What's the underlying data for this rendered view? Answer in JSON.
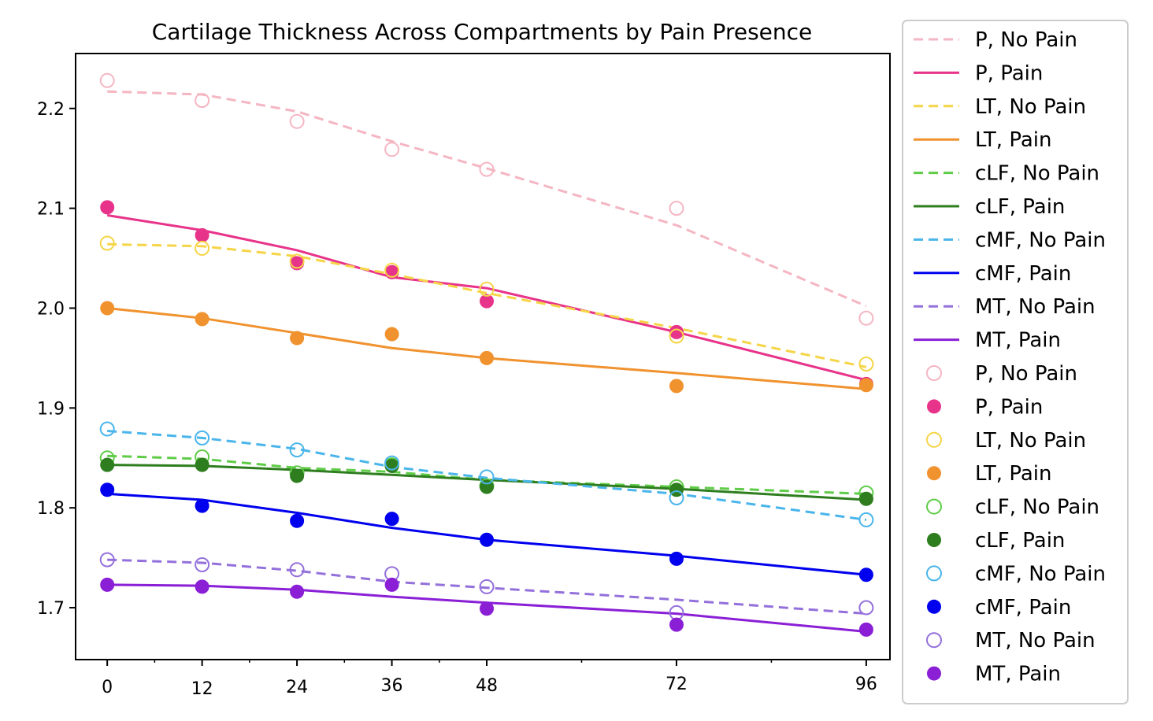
{
  "chart_data": {
    "type": "line",
    "title": "Cartilage Thickness Across Compartments by Pain Presence",
    "xlabel": "",
    "ylabel": "",
    "x": [
      0,
      12,
      24,
      36,
      48,
      72,
      96
    ],
    "x_tick_labels": [
      "0",
      "12",
      "24",
      "36",
      "48",
      "72",
      "96"
    ],
    "y_ticks": [
      1.7,
      1.8,
      1.9,
      2.0,
      2.1,
      2.2
    ],
    "y_tick_labels": [
      "1.7",
      "1.8",
      "1.9",
      "2.0",
      "2.1",
      "2.2"
    ],
    "ylim": [
      1.648,
      2.255
    ],
    "legend_position": "outside-right",
    "series": [
      {
        "name": "P, No Pain",
        "color": "#f4b6c2",
        "style": "dashed",
        "marker": "open",
        "values": [
          2.228,
          2.208,
          2.187,
          2.159,
          2.139,
          2.1,
          1.99
        ],
        "fit": [
          2.217,
          2.214,
          2.197,
          2.167,
          2.14,
          2.083,
          2.002
        ]
      },
      {
        "name": "P, Pain",
        "color": "#e8338a",
        "style": "solid",
        "marker": "filled",
        "values": [
          2.101,
          2.073,
          2.045,
          2.036,
          2.007,
          1.976,
          1.924
        ],
        "fit": [
          2.093,
          2.078,
          2.058,
          2.031,
          2.02,
          1.976,
          1.928
        ]
      },
      {
        "name": "LT, No Pain",
        "color": "#f5d547",
        "style": "dashed",
        "marker": "open",
        "values": [
          2.065,
          2.06,
          2.047,
          2.038,
          2.019,
          1.972,
          1.944
        ],
        "fit": [
          2.064,
          2.062,
          2.052,
          2.034,
          2.015,
          1.98,
          1.941
        ]
      },
      {
        "name": "LT, Pain",
        "color": "#f0922e",
        "style": "solid",
        "marker": "filled",
        "values": [
          2.0,
          1.989,
          1.97,
          1.974,
          1.95,
          1.922,
          1.923
        ],
        "fit": [
          2.0,
          1.99,
          1.975,
          1.96,
          1.95,
          1.935,
          1.919
        ]
      },
      {
        "name": "cLF, No Pain",
        "color": "#5fcc48",
        "style": "dashed",
        "marker": "open",
        "values": [
          1.85,
          1.851,
          1.835,
          1.843,
          1.822,
          1.821,
          1.815
        ],
        "fit": [
          1.852,
          1.849,
          1.84,
          1.836,
          1.828,
          1.821,
          1.814
        ]
      },
      {
        "name": "cLF, Pain",
        "color": "#2e7d1e",
        "style": "solid",
        "marker": "filled",
        "values": [
          1.843,
          1.843,
          1.832,
          1.842,
          1.821,
          1.818,
          1.809
        ],
        "fit": [
          1.843,
          1.842,
          1.838,
          1.833,
          1.828,
          1.819,
          1.808
        ]
      },
      {
        "name": "cMF, No Pain",
        "color": "#4ab5ea",
        "style": "dashed",
        "marker": "open",
        "values": [
          1.879,
          1.87,
          1.858,
          1.845,
          1.831,
          1.81,
          1.788
        ],
        "fit": [
          1.877,
          1.87,
          1.859,
          1.841,
          1.83,
          1.814,
          1.788
        ]
      },
      {
        "name": "cMF, Pain",
        "color": "#0000ee",
        "style": "solid",
        "marker": "filled",
        "values": [
          1.818,
          1.802,
          1.787,
          1.789,
          1.768,
          1.749,
          1.733
        ],
        "fit": [
          1.814,
          1.808,
          1.795,
          1.78,
          1.768,
          1.752,
          1.733
        ]
      },
      {
        "name": "MT, No Pain",
        "color": "#9370db",
        "style": "dashed",
        "marker": "open",
        "values": [
          1.748,
          1.743,
          1.738,
          1.734,
          1.721,
          1.695,
          1.7
        ],
        "fit": [
          1.748,
          1.745,
          1.737,
          1.726,
          1.72,
          1.708,
          1.694
        ]
      },
      {
        "name": "MT, Pain",
        "color": "#8a1fd6",
        "style": "solid",
        "marker": "filled",
        "values": [
          1.723,
          1.721,
          1.716,
          1.723,
          1.699,
          1.683,
          1.678
        ],
        "fit": [
          1.723,
          1.722,
          1.718,
          1.711,
          1.705,
          1.694,
          1.676
        ]
      }
    ]
  }
}
